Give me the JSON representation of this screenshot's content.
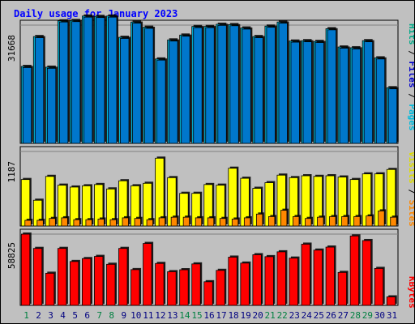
{
  "title": "Daily usage for January 2023",
  "colors": {
    "title": "#0000ff",
    "hits": "#00bbdd",
    "files": "#0077cc",
    "pages": "#00ccee",
    "visits": "#ffff00",
    "sites": "#ff8800",
    "kbytes": "#ff0000",
    "weekday_label": "#000080",
    "weekend_label": "#008040",
    "panel_bg": "#c0c0c0",
    "grid": "#808080"
  },
  "legend": {
    "top": [
      {
        "label": "Hits",
        "color": "#00aa88"
      },
      {
        "label": "Files",
        "color": "#0000cc"
      },
      {
        "label": "Pages",
        "color": "#00bbdd"
      }
    ],
    "middle": [
      {
        "label": "Visits",
        "color": "#dddd00"
      },
      {
        "label": "Sites",
        "color": "#ff8800"
      }
    ],
    "bottom": [
      {
        "label": "KBytes",
        "color": "#ff0000"
      }
    ]
  },
  "chart_data": {
    "type": "bar",
    "title": "Daily usage for January 2023",
    "categories": [
      "1",
      "2",
      "3",
      "4",
      "5",
      "6",
      "7",
      "8",
      "9",
      "10",
      "11",
      "12",
      "13",
      "14",
      "15",
      "16",
      "17",
      "18",
      "19",
      "20",
      "21",
      "22",
      "23",
      "24",
      "25",
      "26",
      "27",
      "28",
      "29",
      "30",
      "31"
    ],
    "weekend_days": [
      "1",
      "7",
      "8",
      "14",
      "15",
      "21",
      "22",
      "28",
      "29"
    ],
    "panels": [
      {
        "name": "hits-files-pages",
        "ymax_label": "31668",
        "ymax": 31668,
        "series": [
          {
            "name": "Hits",
            "values": [
              20600,
              28600,
              20400,
              32800,
              32900,
              34100,
              34000,
              34100,
              28400,
              32500,
              31100,
              22600,
              27700,
              29000,
              31300,
              31300,
              31900,
              31800,
              30900,
              28600,
              31400,
              32500,
              27400,
              27500,
              27300,
              30700,
              25800,
              25600,
              27500,
              22900,
              14900
            ]
          },
          {
            "name": "Files",
            "values": [
              20300,
              28300,
              20100,
              32500,
              32600,
              33800,
              33700,
              33800,
              28100,
              32200,
              30800,
              22300,
              27400,
              28700,
              31000,
              31000,
              31600,
              31500,
              30600,
              28300,
              31100,
              32200,
              27100,
              27200,
              27000,
              30400,
              25500,
              25300,
              27200,
              22600,
              14600
            ]
          }
        ]
      },
      {
        "name": "visits-sites",
        "ymax_label": "1187",
        "ymax": 1187,
        "series": [
          {
            "name": "Visits",
            "values": [
              740,
              410,
              790,
              650,
              620,
              640,
              660,
              590,
              720,
              640,
              680,
              1080,
              770,
              520,
              520,
              660,
              650,
              920,
              760,
              600,
              690,
              810,
              770,
              800,
              790,
              800,
              780,
              740,
              830,
              830,
              900
            ]
          },
          {
            "name": "Sites",
            "values": [
              90,
              90,
              120,
              130,
              100,
              100,
              110,
              100,
              130,
              120,
              100,
              130,
              140,
              140,
              130,
              130,
              120,
              110,
              130,
              190,
              150,
              250,
              150,
              120,
              140,
              150,
              150,
              150,
              160,
              240,
              140
            ]
          }
        ]
      },
      {
        "name": "kbytes",
        "ymax_label": "58825",
        "ymax": 58825,
        "series": [
          {
            "name": "KBytes",
            "values": [
              58800,
              47000,
              26500,
              47000,
              36200,
              38600,
              40400,
              33900,
              47000,
              29500,
              51100,
              34600,
              27800,
              29400,
              34200,
              19500,
              28900,
              39800,
              34900,
              41800,
              40200,
              44200,
              39000,
              50500,
              45600,
              48100,
              27200,
              57300,
              53500,
              30500,
              7000
            ]
          }
        ]
      }
    ]
  }
}
